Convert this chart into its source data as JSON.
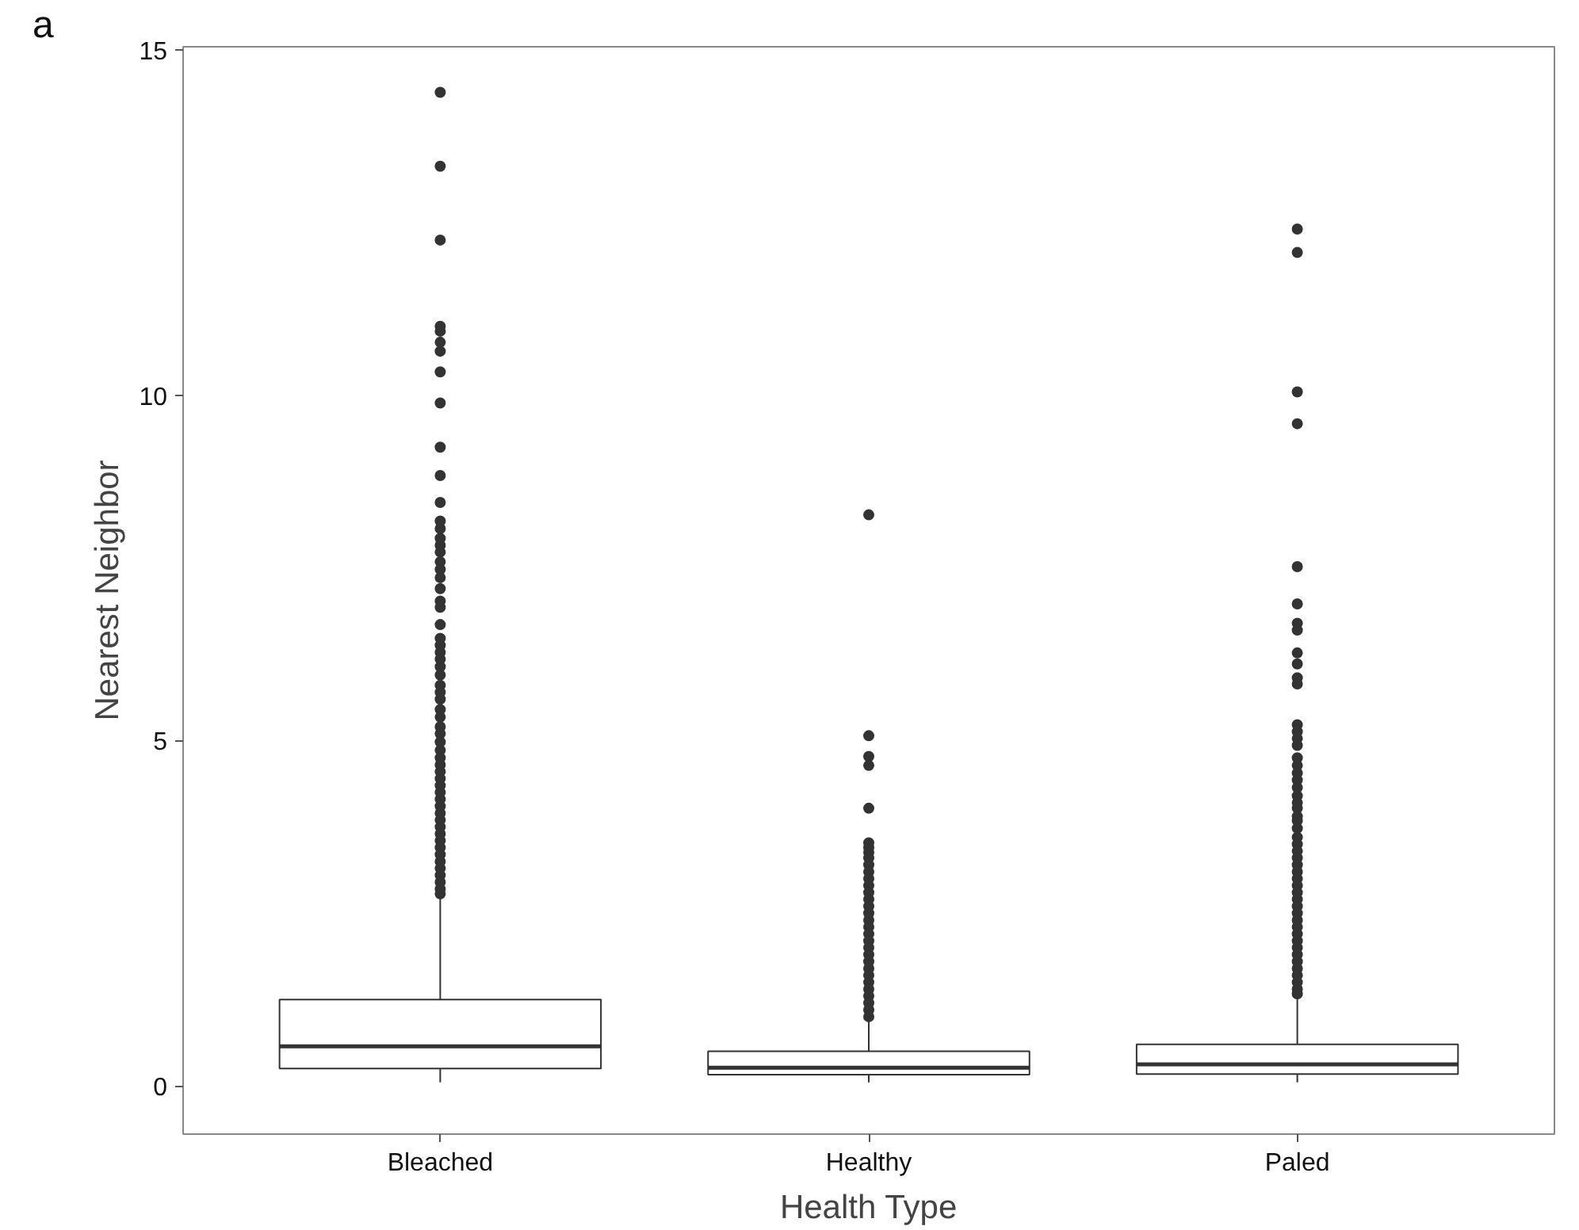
{
  "chart_data": {
    "type": "box",
    "xlabel": "Health Type",
    "ylabel": "Nearest Neighbor",
    "categories": [
      "Bleached",
      "Healthy",
      "Paled"
    ],
    "boxes": [
      {
        "low": 0.05,
        "q1": 0.25,
        "median": 0.57,
        "q3": 1.25,
        "high": 2.72,
        "outliers": [
          14.39,
          13.32,
          12.25,
          11.0,
          10.93,
          10.77,
          10.64,
          10.34,
          9.89,
          9.25,
          8.84,
          8.45,
          8.18,
          8.07,
          7.93,
          7.83,
          7.73,
          7.59,
          7.48,
          7.36,
          7.2,
          7.02,
          6.93,
          6.68,
          6.48,
          6.38,
          6.28,
          6.18,
          6.07,
          5.95,
          5.8,
          5.7,
          5.6,
          5.45,
          5.34,
          5.2,
          5.1,
          4.98,
          4.86,
          4.75,
          4.65,
          4.55,
          4.45,
          4.35,
          4.25,
          4.15,
          4.05,
          3.95,
          3.85,
          3.75,
          3.65,
          3.55,
          3.45,
          3.35,
          3.25,
          3.15,
          3.05,
          2.95,
          2.85,
          2.78
        ]
      },
      {
        "low": 0.05,
        "q1": 0.16,
        "median": 0.26,
        "q3": 0.5,
        "high": 0.95,
        "outliers": [
          8.27,
          5.07,
          4.77,
          4.64,
          4.02,
          3.52,
          3.45,
          3.38,
          3.3,
          3.2,
          3.1,
          3.0,
          2.9,
          2.8,
          2.7,
          2.6,
          2.5,
          2.4,
          2.3,
          2.2,
          2.1,
          2.0,
          1.9,
          1.8,
          1.7,
          1.6,
          1.5,
          1.4,
          1.3,
          1.2,
          1.1,
          1.0
        ]
      },
      {
        "low": 0.05,
        "q1": 0.17,
        "median": 0.31,
        "q3": 0.6,
        "high": 1.25,
        "outliers": [
          12.41,
          12.07,
          10.05,
          9.59,
          7.52,
          6.98,
          6.7,
          6.6,
          6.27,
          6.11,
          5.91,
          5.82,
          5.23,
          5.13,
          5.03,
          4.93,
          4.75,
          4.64,
          4.53,
          4.43,
          4.32,
          4.2,
          4.1,
          4.02,
          3.9,
          3.84,
          3.73,
          3.6,
          3.5,
          3.4,
          3.3,
          3.2,
          3.1,
          3.0,
          2.9,
          2.8,
          2.7,
          2.6,
          2.5,
          2.4,
          2.3,
          2.2,
          2.1,
          2.0,
          1.9,
          1.8,
          1.7,
          1.6,
          1.5,
          1.4,
          1.33
        ]
      }
    ],
    "ylim": [
      -0.7,
      15.05
    ],
    "yticks": [
      0,
      5,
      10,
      15
    ],
    "grid": false,
    "annotations": [
      "a"
    ]
  }
}
